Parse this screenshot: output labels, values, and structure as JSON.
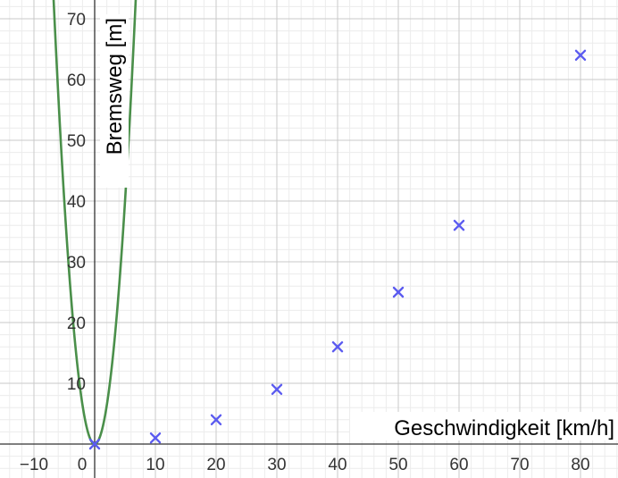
{
  "chart_data": {
    "type": "scatter",
    "xlabel": "Geschwindigkeit [km/h]",
    "ylabel": "Bremsweg [m]",
    "xlim": [
      -14,
      86
    ],
    "ylim": [
      -6,
      71
    ],
    "x_ticks": [
      -10,
      0,
      10,
      20,
      30,
      40,
      50,
      60,
      70,
      80
    ],
    "x_tick_labels": [
      "−10",
      "0",
      "10",
      "20",
      "30",
      "40",
      "50",
      "60",
      "70",
      "80"
    ],
    "y_ticks": [
      10,
      20,
      30,
      40,
      50,
      60,
      70
    ],
    "y_tick_labels": [
      "10",
      "20",
      "30",
      "40",
      "50",
      "60",
      "70"
    ],
    "grid": true,
    "series": [
      {
        "type": "scatter",
        "marker": "x",
        "color": "#5b5bf0",
        "points": [
          {
            "x": 0,
            "y": 0
          },
          {
            "x": 10,
            "y": 1
          },
          {
            "x": 20,
            "y": 4
          },
          {
            "x": 30,
            "y": 9
          },
          {
            "x": 40,
            "y": 16
          },
          {
            "x": 50,
            "y": 25
          },
          {
            "x": 60,
            "y": 36
          },
          {
            "x": 80,
            "y": 64
          }
        ]
      },
      {
        "type": "line",
        "color": "#4a8f4a",
        "function": "y = 1.6 * x^2",
        "coefficient": 1.6,
        "exponent": 2
      }
    ]
  }
}
